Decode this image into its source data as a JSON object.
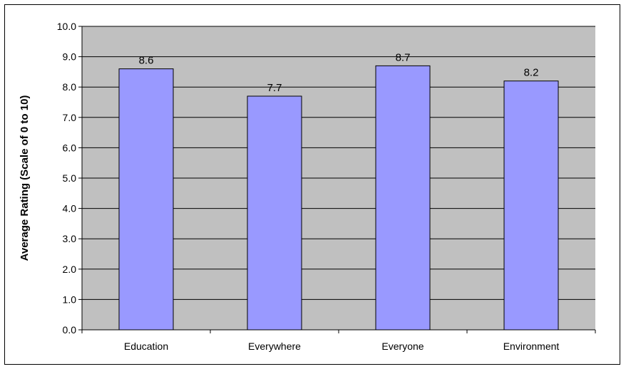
{
  "chart_data": {
    "type": "bar",
    "categories": [
      "Education",
      "Everywhere",
      "Everyone",
      "Environment"
    ],
    "values": [
      8.6,
      7.7,
      8.7,
      8.2
    ],
    "data_labels": [
      "8.6",
      "7.7",
      "8.7",
      "8.2"
    ],
    "title": "",
    "xlabel": "",
    "ylabel": "Average Rating (Scale of 0 to 10)",
    "ylim": [
      0,
      10
    ],
    "yticks": [
      0,
      1,
      2,
      3,
      4,
      5,
      6,
      7,
      8,
      9,
      10
    ],
    "ytick_labels": [
      "0.0",
      "1.0",
      "2.0",
      "3.0",
      "4.0",
      "5.0",
      "6.0",
      "7.0",
      "8.0",
      "9.0",
      "10.0"
    ],
    "grid": true,
    "legend": "none",
    "colors": {
      "plot_background": "#c0c0c0",
      "bar_fill": "#9999ff",
      "bar_stroke": "#000000",
      "gridline": "#000000"
    }
  }
}
